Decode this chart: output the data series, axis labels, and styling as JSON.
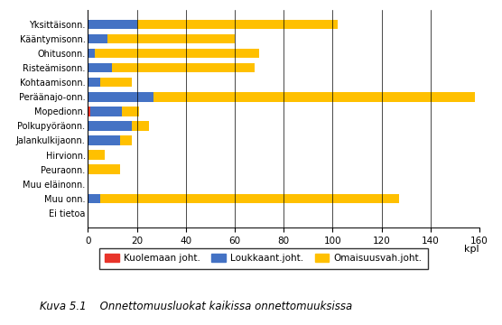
{
  "categories": [
    "Yksittäisonn.",
    "Kääntymisоnn.",
    "Ohitusonn.",
    "Risteämisonn.",
    "Kohtaamisonn.",
    "Peräänajo-onn.",
    "Mopedionn.",
    "Polkupyöräonn.",
    "Jalankulkijaonn.",
    "Hirvionn.",
    "Peuraonn.",
    "Muu eläinonn.",
    "Muu onn.",
    "Ei tietoa"
  ],
  "kuolemaan": [
    0,
    0,
    0,
    0,
    0,
    0,
    1,
    0,
    0,
    0,
    0,
    0,
    0,
    0
  ],
  "loukkaant": [
    20,
    8,
    3,
    10,
    5,
    27,
    13,
    18,
    13,
    0,
    0,
    0,
    5,
    0
  ],
  "omaisuus": [
    82,
    52,
    67,
    58,
    13,
    131,
    7,
    7,
    5,
    7,
    13,
    0,
    122,
    0
  ],
  "color_kuolemaan": "#e8342a",
  "color_loukkaant": "#4472c4",
  "color_omaisuus": "#ffc000",
  "xlabel": "kpl",
  "xlim": [
    0,
    160
  ],
  "xticks": [
    0,
    20,
    40,
    60,
    80,
    100,
    120,
    140,
    160
  ],
  "legend_labels": [
    "Kuolemaan joht.",
    "Loukkaant.joht.",
    "Omaisuusvah.joht."
  ],
  "caption": "Kuva 5.1    Onnettomuusluokat kaikissa onnettomuuksissa",
  "background_color": "#ffffff",
  "bar_height": 0.65
}
